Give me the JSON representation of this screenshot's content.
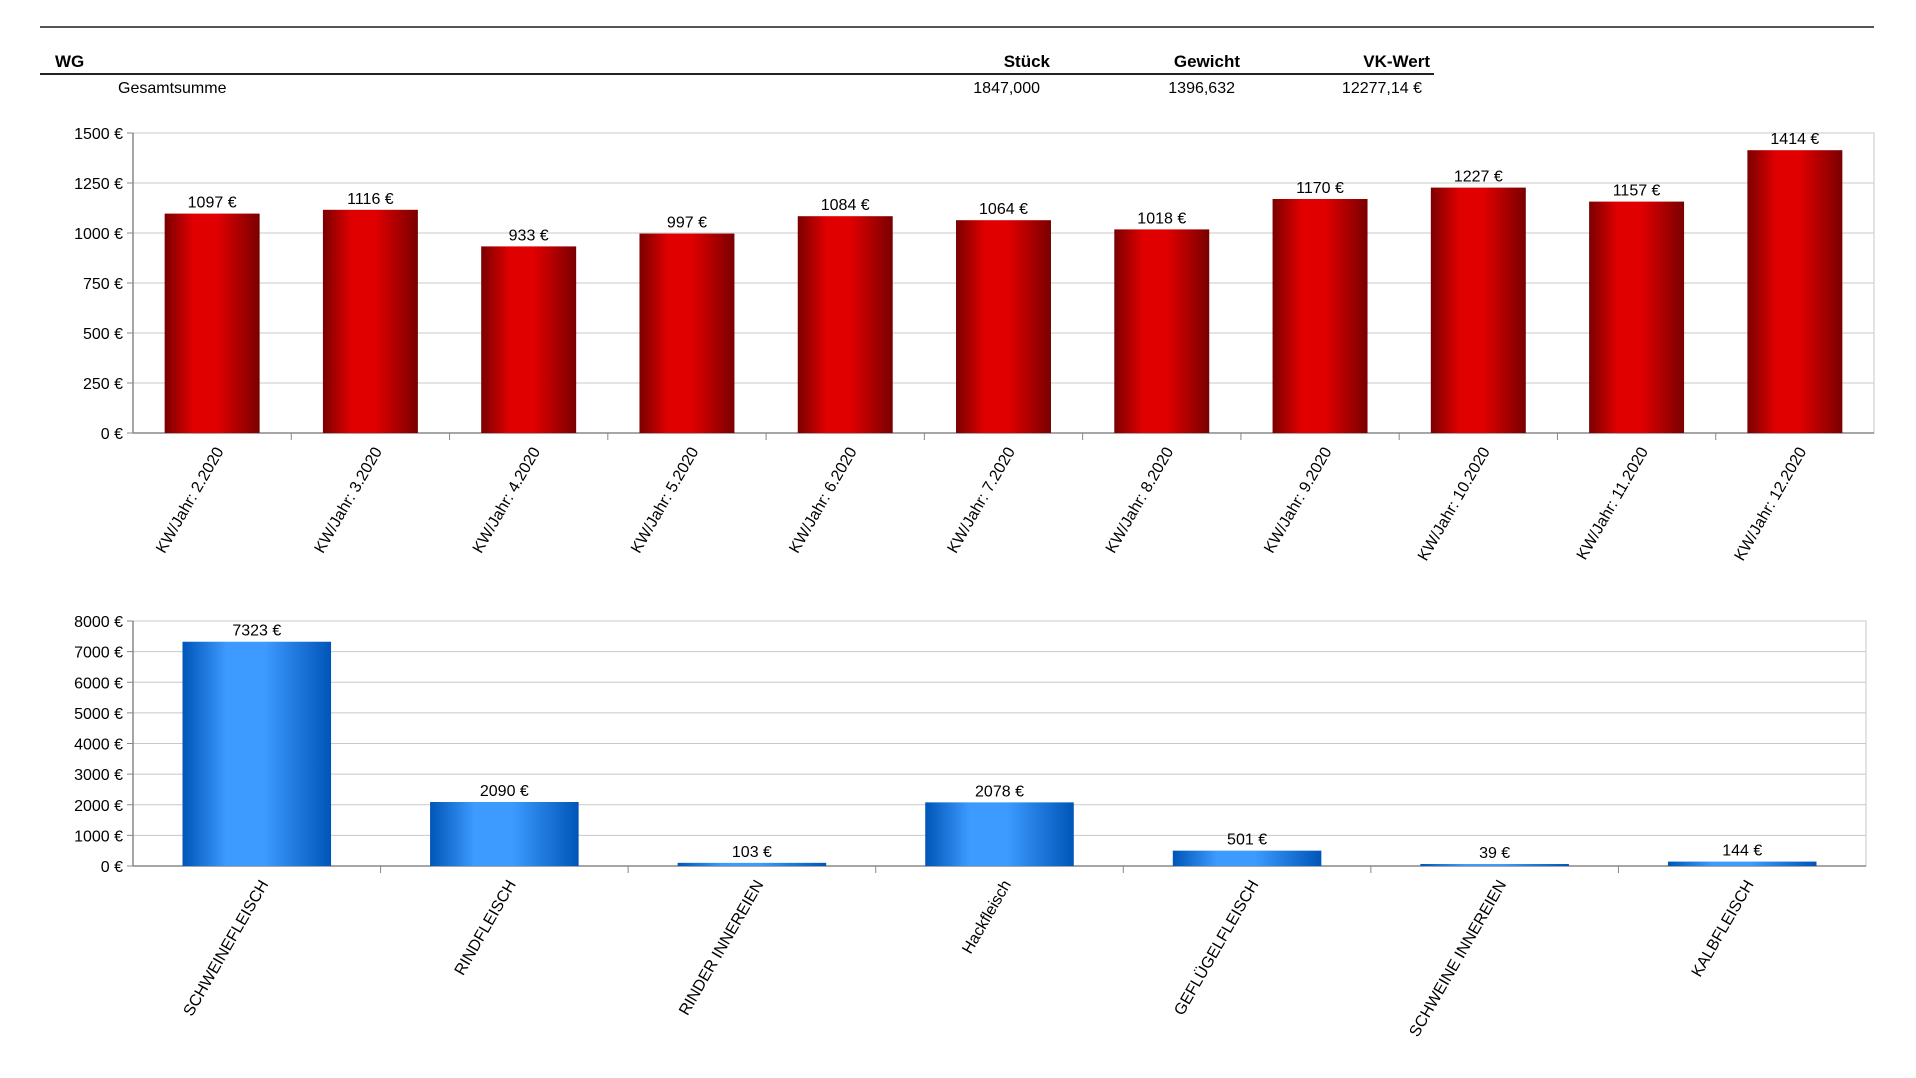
{
  "table": {
    "headers": {
      "wg": "WG",
      "stueck": "Stück",
      "gewicht": "Gewicht",
      "vkwert": "VK-Wert"
    },
    "row": {
      "label": "Gesamtsumme",
      "stueck": "1847,000",
      "gewicht": "1396,632",
      "vkwert": "12277,14 €"
    }
  },
  "chart_data": [
    {
      "type": "bar",
      "categories": [
        "KW/Jahr: 2.2020",
        "KW/Jahr: 3.2020",
        "KW/Jahr: 4.2020",
        "KW/Jahr: 5.2020",
        "KW/Jahr: 6.2020",
        "KW/Jahr: 7.2020",
        "KW/Jahr: 8.2020",
        "KW/Jahr: 9.2020",
        "KW/Jahr: 10.2020",
        "KW/Jahr: 11.2020",
        "KW/Jahr: 12.2020"
      ],
      "values": [
        1097,
        1116,
        933,
        997,
        1084,
        1064,
        1018,
        1170,
        1227,
        1157,
        1414
      ],
      "data_labels": [
        "1097 €",
        "1116 €",
        "933 €",
        "997 €",
        "1084 €",
        "1064 €",
        "1018 €",
        "1170 €",
        "1227 €",
        "1157 €",
        "1414 €"
      ],
      "yticks": [
        "0 €",
        "250 €",
        "500 €",
        "750 €",
        "1000 €",
        "1250 €",
        "1500 €"
      ],
      "ylim": [
        0,
        1500
      ],
      "grid": true,
      "color": "#e00000",
      "color_dark": "#7a0000"
    },
    {
      "type": "bar",
      "categories": [
        "SCHWEINEFLEISCH",
        "RINDFLEISCH",
        "RINDER INNEREIEN",
        "Hackfleisch",
        "GEFLÜGELFLEISCH",
        "SCHWEINE INNEREIEN",
        "KALBFLEISCH"
      ],
      "values": [
        7323,
        2090,
        103,
        2078,
        501,
        39,
        144
      ],
      "data_labels": [
        "7323 €",
        "2090 €",
        "103 €",
        "2078 €",
        "501 €",
        "39 €",
        "144 €"
      ],
      "yticks": [
        "0 €",
        "1000 €",
        "2000 €",
        "3000 €",
        "4000 €",
        "5000 €",
        "6000 €",
        "7000 €",
        "8000 €"
      ],
      "ylim": [
        0,
        8000
      ],
      "grid": true,
      "color": "#3d9bff",
      "color_dark": "#0055b8"
    }
  ]
}
